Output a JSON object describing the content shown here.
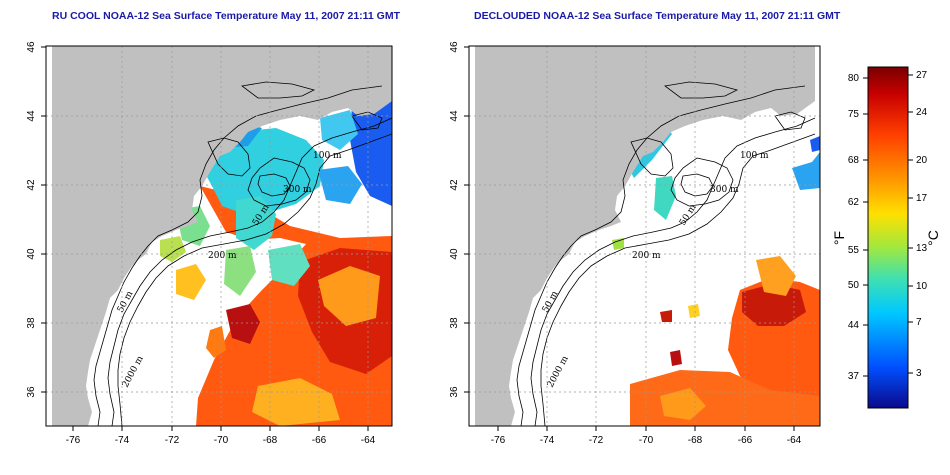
{
  "maps": [
    {
      "title": "RU COOL NOAA-12 Sea Surface Temperature May 11, 2007 21:11 GMT",
      "contour_labels": [
        "100 m",
        "300 m",
        "50 m",
        "200 m",
        "50 m",
        "2000 m"
      ]
    },
    {
      "title": "DECLOUDED NOAA-12 Sea Surface Temperature May 11, 2007 21:11 GMT",
      "contour_labels": [
        "100 m",
        "300 m",
        "50 m",
        "200 m",
        "50 m",
        "2000 m"
      ]
    }
  ],
  "axes": {
    "lon_ticks": [
      "-76",
      "-74",
      "-72",
      "-70",
      "-68",
      "-66",
      "-64"
    ],
    "lat_ticks": [
      "46",
      "44",
      "42",
      "40",
      "38",
      "36"
    ],
    "lon_range": [
      -77.5,
      -62.9
    ],
    "lat_range": [
      35.0,
      46.0
    ],
    "grid": "dotted"
  },
  "colorbar": {
    "fahrenheit_label": "°F",
    "celsius_label": "°C",
    "fahrenheit_ticks": [
      "80",
      "75",
      "68",
      "62",
      "55",
      "50",
      "44",
      "37"
    ],
    "celsius_ticks": [
      "27",
      "24",
      "20",
      "17",
      "13",
      "10",
      "7",
      "3"
    ],
    "range_celsius": [
      0,
      28
    ],
    "colors": [
      "#0a0a8c",
      "#0050ff",
      "#00c8ff",
      "#40e0b0",
      "#a0e840",
      "#ffe000",
      "#ff9000",
      "#ff4000",
      "#c80000",
      "#7a0000"
    ]
  },
  "colors": {
    "land": "#c0c0c0",
    "ocean_no_data": "#ffffff",
    "title": "#1a1aa8"
  }
}
